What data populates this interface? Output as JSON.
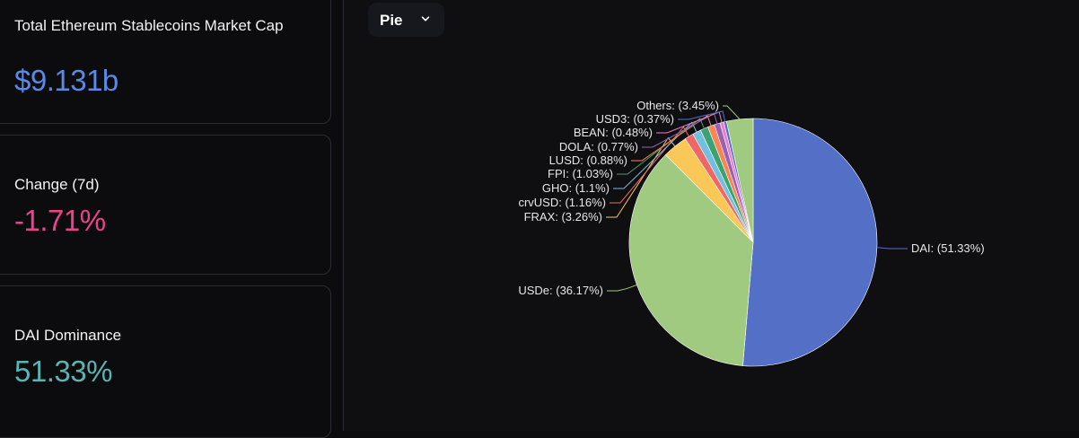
{
  "cards": {
    "market_cap": {
      "label": "Total Ethereum Stablecoins Market Cap",
      "value": "$9.131b",
      "color": "#5b8ae6"
    },
    "change_7d": {
      "label": "Change (7d)",
      "value": "-1.71%",
      "color": "#e9438c"
    },
    "dai_dominance": {
      "label": "DAI Dominance",
      "value": "51.33%",
      "color": "#5bb3b3"
    }
  },
  "chart_selector": {
    "label": "Pie",
    "icon": "chevron-down-icon"
  },
  "chart_data": {
    "type": "pie",
    "slices": [
      {
        "name": "DAI",
        "label": "DAI: (51.33%)",
        "value": 51.33,
        "color": "#5470c6"
      },
      {
        "name": "USDe",
        "label": "USDe: (36.17%)",
        "value": 36.17,
        "color": "#a0ca7f"
      },
      {
        "name": "FRAX",
        "label": "FRAX: (3.26%)",
        "value": 3.26,
        "color": "#fac858"
      },
      {
        "name": "crvUSD",
        "label": "crvUSD: (1.16%)",
        "value": 1.16,
        "color": "#ee6666"
      },
      {
        "name": "GHO",
        "label": "GHO: (1.1%)",
        "value": 1.1,
        "color": "#73c0de"
      },
      {
        "name": "FPI",
        "label": "FPI: (1.03%)",
        "value": 1.03,
        "color": "#3ba272"
      },
      {
        "name": "LUSD",
        "label": "LUSD: (0.88%)",
        "value": 0.88,
        "color": "#fc8452"
      },
      {
        "name": "DOLA",
        "label": "DOLA: (0.77%)",
        "value": 0.77,
        "color": "#9a60b4"
      },
      {
        "name": "BEAN",
        "label": "BEAN: (0.48%)",
        "value": 0.48,
        "color": "#ea7ccc"
      },
      {
        "name": "USD3",
        "label": "USD3: (0.37%)",
        "value": 0.37,
        "color": "#5470c6"
      },
      {
        "name": "Others",
        "label": "Others: (3.45%)",
        "value": 3.45,
        "color": "#a0ca7f"
      }
    ]
  }
}
